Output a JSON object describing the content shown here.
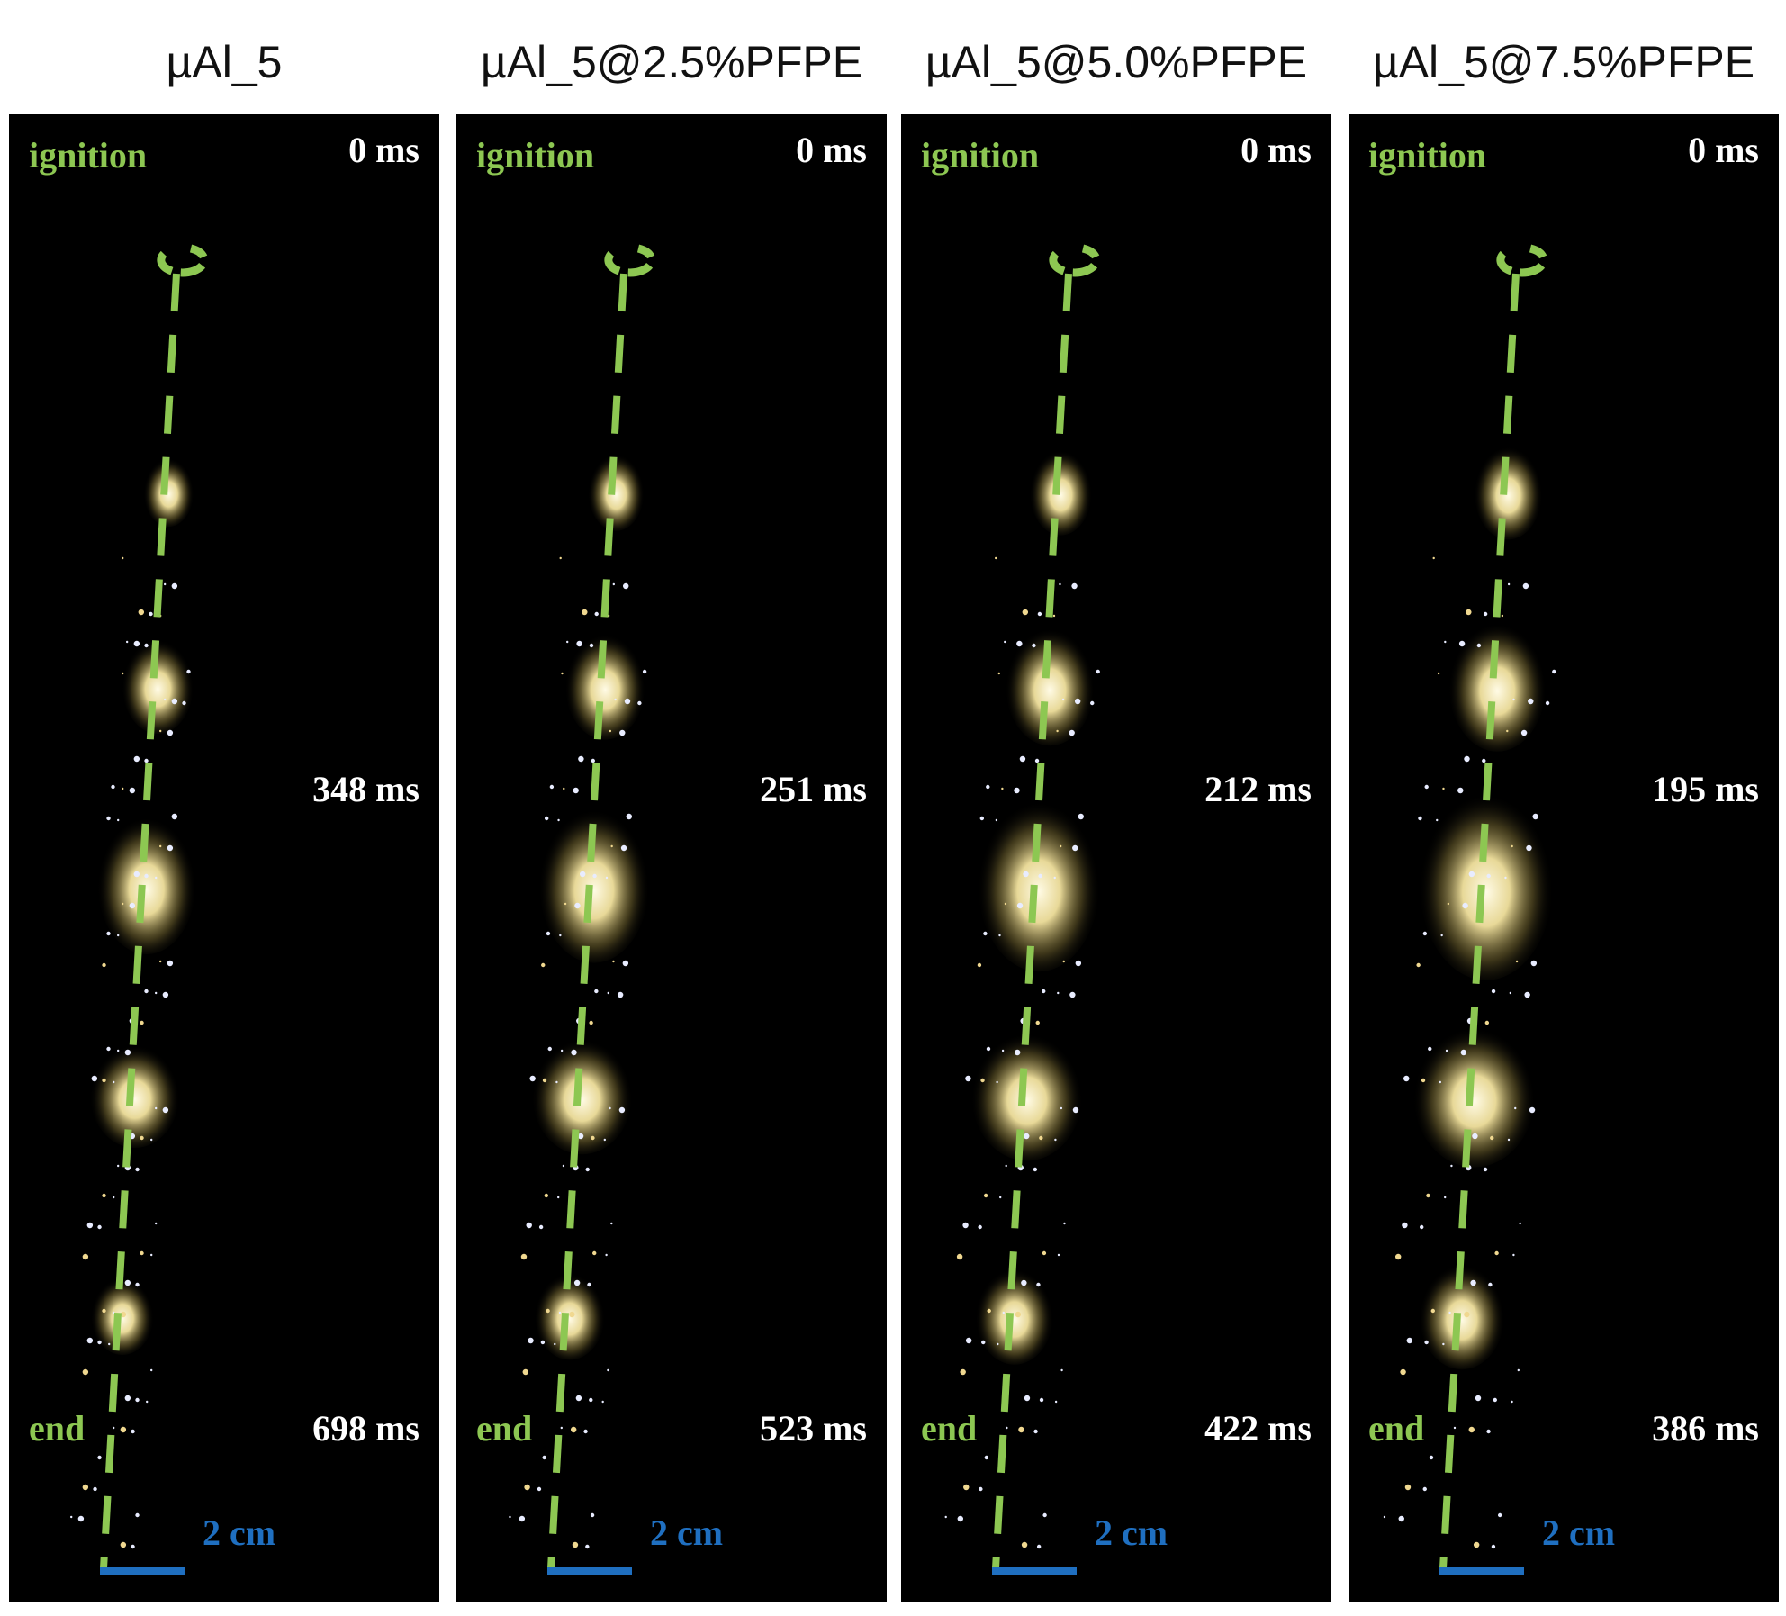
{
  "panels": [
    {
      "title": "µAl_5",
      "start_label": "ignition",
      "start_time": "0 ms",
      "mid_time": "348 ms",
      "end_label": "end",
      "end_time": "698 ms",
      "scale": "2 cm"
    },
    {
      "title": "µAl_5@2.5%PFPE",
      "start_label": "ignition",
      "start_time": "0 ms",
      "mid_time": "251 ms",
      "end_label": "end",
      "end_time": "523 ms",
      "scale": "2 cm"
    },
    {
      "title": "µAl_5@5.0%PFPE",
      "start_label": "ignition",
      "start_time": "0 ms",
      "mid_time": "212 ms",
      "end_label": "end",
      "end_time": "422 ms",
      "scale": "2 cm"
    },
    {
      "title": "µAl_5@7.5%PFPE",
      "start_label": "ignition",
      "start_time": "0 ms",
      "mid_time": "195 ms",
      "end_label": "end",
      "end_time": "386 ms",
      "scale": "2 cm"
    }
  ]
}
